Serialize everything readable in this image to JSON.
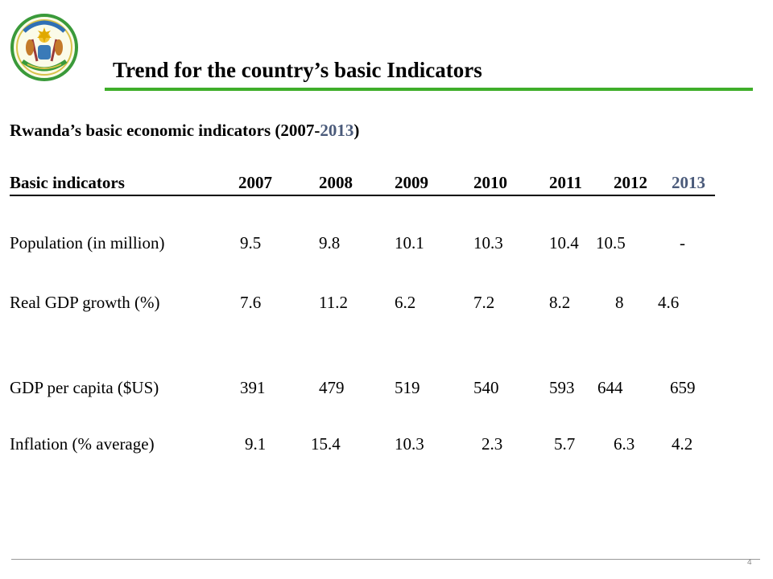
{
  "slide": {
    "title": "Trend for the country’s basic Indicators",
    "subtitle_main": "Rwanda’s basic economic indicators  (2007-",
    "subtitle_end": "2013",
    "subtitle_close": ")",
    "page_number": "4"
  },
  "table": {
    "header": {
      "label": "Basic indicators",
      "years": [
        "2007",
        "2008",
        "2009",
        "2010",
        "2011",
        "2012",
        "2013"
      ]
    },
    "rows": [
      {
        "label": "Population (in million)",
        "values": [
          "9.5",
          "9.8",
          "10.1",
          "10.3",
          "10.4",
          "10.5",
          "-"
        ]
      },
      {
        "label": "Real GDP growth (%)",
        "values": [
          "7.6",
          "11.2",
          "6.2",
          "7.2",
          "8.2",
          "8",
          "4.6"
        ]
      },
      {
        "label": "GDP per capita ($US)",
        "values": [
          "391",
          "479",
          "519",
          "540",
          "593",
          "644",
          "659"
        ]
      },
      {
        "label": "Inflation (% average)",
        "values": [
          "9.1",
          "15.4",
          "10.3",
          "2.3",
          "5.7",
          "6.3",
          "4.2"
        ]
      }
    ]
  },
  "colors": {
    "accent_rule": "#3fae2a",
    "muted_blue": "#4a5a7a"
  }
}
